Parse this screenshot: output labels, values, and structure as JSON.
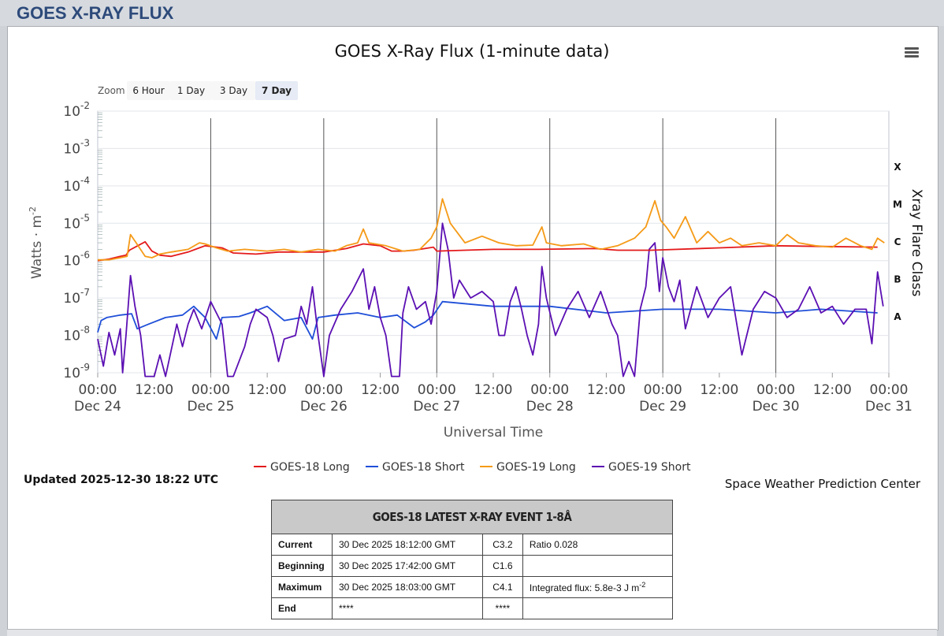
{
  "page": {
    "header": "GOES X-RAY FLUX"
  },
  "chart_data": {
    "type": "line",
    "title": "GOES X-Ray Flux (1-minute data)",
    "xlabel": "Universal Time",
    "ylabel": "Watts · m",
    "ylabel_sup": "-2",
    "y_scale": "log",
    "ylim": [
      1e-09,
      0.01
    ],
    "y_ticks": [
      {
        "base": "10",
        "exp": "-9"
      },
      {
        "base": "10",
        "exp": "-8"
      },
      {
        "base": "10",
        "exp": "-7"
      },
      {
        "base": "10",
        "exp": "-6"
      },
      {
        "base": "10",
        "exp": "-5"
      },
      {
        "base": "10",
        "exp": "-4"
      },
      {
        "base": "10",
        "exp": "-3"
      },
      {
        "base": "10",
        "exp": "-2"
      }
    ],
    "xlim": [
      "2025-12-24 00:00",
      "2025-12-31 00:00"
    ],
    "x_ticks": [
      {
        "time": "00:00",
        "date": "Dec 24"
      },
      {
        "time": "12:00",
        "date": ""
      },
      {
        "time": "00:00",
        "date": "Dec 25"
      },
      {
        "time": "12:00",
        "date": ""
      },
      {
        "time": "00:00",
        "date": "Dec 26"
      },
      {
        "time": "12:00",
        "date": ""
      },
      {
        "time": "00:00",
        "date": "Dec 27"
      },
      {
        "time": "12:00",
        "date": ""
      },
      {
        "time": "00:00",
        "date": "Dec 28"
      },
      {
        "time": "12:00",
        "date": ""
      },
      {
        "time": "00:00",
        "date": "Dec 29"
      },
      {
        "time": "12:00",
        "date": ""
      },
      {
        "time": "00:00",
        "date": "Dec 30"
      },
      {
        "time": "12:00",
        "date": ""
      },
      {
        "time": "00:00",
        "date": "Dec 31"
      }
    ],
    "right_axis_title": "Xray Flare Class",
    "flare_classes": [
      {
        "label": "X",
        "level": 0.0001
      },
      {
        "label": "M",
        "level": 1e-05
      },
      {
        "label": "C",
        "level": 1e-06
      },
      {
        "label": "B",
        "level": 1e-07
      },
      {
        "label": "A",
        "level": 1e-08
      }
    ],
    "grid": true,
    "legend_position": "bottom",
    "zoom": {
      "label": "Zoom",
      "buttons": [
        "6 Hour",
        "1 Day",
        "3 Day",
        "7 Day"
      ],
      "active": "7 Day"
    },
    "series": [
      {
        "name": "GOES-18 Long",
        "color": "#e41a1c",
        "points": [
          [
            0,
            1e-06
          ],
          [
            0.1,
            1.1e-06
          ],
          [
            0.2,
            1.3e-06
          ],
          [
            0.25,
            1.4e-06
          ],
          [
            0.28,
            1.9e-06
          ],
          [
            0.42,
            3.2e-06
          ],
          [
            0.48,
            1.8e-06
          ],
          [
            0.55,
            1.4e-06
          ],
          [
            0.65,
            1.3e-06
          ],
          [
            0.8,
            1.7e-06
          ],
          [
            0.95,
            2.5e-06
          ],
          [
            1.1,
            2.2e-06
          ],
          [
            1.2,
            1.6e-06
          ],
          [
            1.4,
            1.5e-06
          ],
          [
            1.6,
            1.7e-06
          ],
          [
            1.8,
            1.7e-06
          ],
          [
            1.95,
            1.7e-06
          ],
          [
            2.0,
            1.7e-06
          ],
          [
            2.2,
            2.1e-06
          ],
          [
            2.35,
            2.8e-06
          ],
          [
            2.5,
            2.5e-06
          ],
          [
            2.6,
            1.8e-06
          ],
          [
            2.7,
            1.8e-06
          ],
          [
            2.8,
            1.9e-06
          ],
          [
            2.97,
            2.3e-06
          ],
          [
            3.0,
            1.8e-06
          ],
          [
            3.5,
            2e-06
          ],
          [
            3.9,
            2e-06
          ],
          [
            4.4,
            2.1e-06
          ],
          [
            4.6,
            1.9e-06
          ],
          [
            4.75,
            1.9e-06
          ],
          [
            4.9,
            1.9e-06
          ],
          [
            5.5,
            2.2e-06
          ],
          [
            6.0,
            2.5e-06
          ],
          [
            6.4,
            2.4e-06
          ],
          [
            6.9,
            2.3e-06
          ]
        ]
      },
      {
        "name": "GOES-18 Short",
        "color": "#1f4fd8",
        "points": [
          [
            0,
            1.2e-08
          ],
          [
            0.03,
            2.5e-08
          ],
          [
            0.08,
            3e-08
          ],
          [
            0.2,
            3.5e-08
          ],
          [
            0.3,
            3.8e-08
          ],
          [
            0.35,
            1.5e-08
          ],
          [
            0.45,
            2e-08
          ],
          [
            0.6,
            3e-08
          ],
          [
            0.75,
            3.5e-08
          ],
          [
            0.85,
            6e-08
          ],
          [
            0.95,
            3e-08
          ],
          [
            1.05,
            8e-09
          ],
          [
            1.1,
            3e-08
          ],
          [
            1.25,
            3.2e-08
          ],
          [
            1.35,
            4e-08
          ],
          [
            1.5,
            6e-08
          ],
          [
            1.65,
            2.5e-08
          ],
          [
            1.8,
            3e-08
          ],
          [
            1.9,
            8e-09
          ],
          [
            1.95,
            3e-08
          ],
          [
            2.1,
            3.5e-08
          ],
          [
            2.3,
            4e-08
          ],
          [
            2.5,
            3e-08
          ],
          [
            2.65,
            3.5e-08
          ],
          [
            2.8,
            1.6e-08
          ],
          [
            2.9,
            2.3e-08
          ],
          [
            2.97,
            3.5e-08
          ],
          [
            3.05,
            8e-08
          ],
          [
            3.5,
            6e-08
          ],
          [
            4,
            6e-08
          ],
          [
            4.5,
            4e-08
          ],
          [
            5,
            5e-08
          ],
          [
            5.5,
            5e-08
          ],
          [
            6,
            4e-08
          ],
          [
            6.4,
            5e-08
          ],
          [
            6.9,
            4e-08
          ]
        ]
      },
      {
        "name": "GOES-19 Long",
        "color": "#f59a17",
        "points": [
          [
            0,
            1.05e-06
          ],
          [
            0.1,
            1.05e-06
          ],
          [
            0.2,
            1.2e-06
          ],
          [
            0.26,
            1.3e-06
          ],
          [
            0.29,
            5e-06
          ],
          [
            0.34,
            3e-06
          ],
          [
            0.42,
            1.3e-06
          ],
          [
            0.48,
            1.2e-06
          ],
          [
            0.55,
            1.5e-06
          ],
          [
            0.65,
            1.7e-06
          ],
          [
            0.8,
            2e-06
          ],
          [
            0.9,
            3e-06
          ],
          [
            0.95,
            2.8e-06
          ],
          [
            1.05,
            2.2e-06
          ],
          [
            1.15,
            1.8e-06
          ],
          [
            1.3,
            2e-06
          ],
          [
            1.5,
            1.8e-06
          ],
          [
            1.65,
            2e-06
          ],
          [
            1.8,
            1.7e-06
          ],
          [
            1.95,
            2e-06
          ],
          [
            2.1,
            1.8e-06
          ],
          [
            2.2,
            2.5e-06
          ],
          [
            2.3,
            3e-06
          ],
          [
            2.35,
            7e-06
          ],
          [
            2.4,
            3e-06
          ],
          [
            2.55,
            2.5e-06
          ],
          [
            2.7,
            1.8e-06
          ],
          [
            2.85,
            2e-06
          ],
          [
            2.95,
            4e-06
          ],
          [
            3.0,
            8e-06
          ],
          [
            3.05,
            4.5e-05
          ],
          [
            3.12,
            1e-05
          ],
          [
            3.25,
            3e-06
          ],
          [
            3.4,
            4.5e-06
          ],
          [
            3.55,
            3e-06
          ],
          [
            3.7,
            2.5e-06
          ],
          [
            3.85,
            2.6e-06
          ],
          [
            3.93,
            8e-06
          ],
          [
            3.97,
            3e-06
          ],
          [
            4.1,
            2.5e-06
          ],
          [
            4.3,
            2.8e-06
          ],
          [
            4.45,
            2e-06
          ],
          [
            4.6,
            2.5e-06
          ],
          [
            4.75,
            4e-06
          ],
          [
            4.85,
            8e-06
          ],
          [
            4.93,
            4e-05
          ],
          [
            4.98,
            1.2e-05
          ],
          [
            5.03,
            8e-06
          ],
          [
            5.1,
            4e-06
          ],
          [
            5.2,
            1.5e-05
          ],
          [
            5.3,
            3e-06
          ],
          [
            5.4,
            6e-06
          ],
          [
            5.5,
            3e-06
          ],
          [
            5.6,
            4e-06
          ],
          [
            5.7,
            2.5e-06
          ],
          [
            5.85,
            3e-06
          ],
          [
            6.0,
            2.5e-06
          ],
          [
            6.1,
            5e-06
          ],
          [
            6.2,
            3e-06
          ],
          [
            6.35,
            2.5e-06
          ],
          [
            6.5,
            2.3e-06
          ],
          [
            6.62,
            4e-06
          ],
          [
            6.75,
            2.5e-06
          ],
          [
            6.85,
            2e-06
          ],
          [
            6.9,
            4e-06
          ],
          [
            6.96,
            3e-06
          ]
        ]
      },
      {
        "name": "GOES-19 Short",
        "color": "#5b0fb3",
        "points": [
          [
            0,
            8e-09
          ],
          [
            0.05,
            1.5e-09
          ],
          [
            0.1,
            1.2e-08
          ],
          [
            0.15,
            3e-09
          ],
          [
            0.2,
            1.5e-08
          ],
          [
            0.22,
            1e-09
          ],
          [
            0.25,
            1e-08
          ],
          [
            0.29,
            4e-07
          ],
          [
            0.33,
            6e-08
          ],
          [
            0.38,
            1e-08
          ],
          [
            0.42,
            8e-10
          ],
          [
            0.5,
            8e-10
          ],
          [
            0.55,
            3e-09
          ],
          [
            0.6,
            8e-10
          ],
          [
            0.7,
            2e-08
          ],
          [
            0.75,
            5e-09
          ],
          [
            0.8,
            2e-08
          ],
          [
            0.85,
            5e-08
          ],
          [
            0.92,
            1.5e-08
          ],
          [
            1.0,
            8e-08
          ],
          [
            1.05,
            4e-08
          ],
          [
            1.1,
            2e-08
          ],
          [
            1.15,
            8e-10
          ],
          [
            1.2,
            8e-10
          ],
          [
            1.3,
            5e-09
          ],
          [
            1.35,
            2e-08
          ],
          [
            1.4,
            5e-08
          ],
          [
            1.5,
            3e-08
          ],
          [
            1.55,
            1e-08
          ],
          [
            1.6,
            2e-09
          ],
          [
            1.65,
            8e-09
          ],
          [
            1.75,
            1e-08
          ],
          [
            1.8,
            6e-08
          ],
          [
            1.85,
            2e-08
          ],
          [
            1.9,
            2e-07
          ],
          [
            1.95,
            1e-08
          ],
          [
            2.0,
            8e-10
          ],
          [
            2.05,
            1e-08
          ],
          [
            2.15,
            5e-08
          ],
          [
            2.25,
            1.5e-07
          ],
          [
            2.35,
            6e-07
          ],
          [
            2.4,
            5e-08
          ],
          [
            2.45,
            2e-07
          ],
          [
            2.5,
            3e-08
          ],
          [
            2.55,
            1e-08
          ],
          [
            2.6,
            8e-10
          ],
          [
            2.67,
            8e-10
          ],
          [
            2.7,
            4e-08
          ],
          [
            2.75,
            2e-07
          ],
          [
            2.82,
            5e-08
          ],
          [
            2.9,
            8e-08
          ],
          [
            2.95,
            2e-08
          ],
          [
            3.0,
            1.5e-07
          ],
          [
            3.05,
            1e-05
          ],
          [
            3.1,
            2e-06
          ],
          [
            3.15,
            1e-07
          ],
          [
            3.2,
            3e-07
          ],
          [
            3.3,
            1e-07
          ],
          [
            3.4,
            1.5e-07
          ],
          [
            3.5,
            8e-08
          ],
          [
            3.55,
            1e-08
          ],
          [
            3.6,
            1e-08
          ],
          [
            3.65,
            8e-08
          ],
          [
            3.7,
            2e-07
          ],
          [
            3.75,
            5e-08
          ],
          [
            3.8,
            1e-08
          ],
          [
            3.85,
            3e-09
          ],
          [
            3.9,
            2e-08
          ],
          [
            3.93,
            7e-07
          ],
          [
            3.97,
            1e-07
          ],
          [
            4.05,
            1e-08
          ],
          [
            4.15,
            5e-08
          ],
          [
            4.25,
            1.5e-07
          ],
          [
            4.35,
            3e-08
          ],
          [
            4.45,
            1.5e-07
          ],
          [
            4.55,
            2e-08
          ],
          [
            4.6,
            1e-08
          ],
          [
            4.65,
            8e-10
          ],
          [
            4.7,
            2e-09
          ],
          [
            4.75,
            8e-10
          ],
          [
            4.8,
            5e-08
          ],
          [
            4.85,
            2e-07
          ],
          [
            4.88,
            2e-06
          ],
          [
            4.93,
            3e-06
          ],
          [
            4.97,
            1.5e-07
          ],
          [
            5.0,
            1.2e-06
          ],
          [
            5.05,
            2e-07
          ],
          [
            5.1,
            8e-08
          ],
          [
            5.15,
            3e-07
          ],
          [
            5.2,
            1.5e-08
          ],
          [
            5.3,
            2e-07
          ],
          [
            5.4,
            3e-08
          ],
          [
            5.5,
            1e-07
          ],
          [
            5.6,
            2e-07
          ],
          [
            5.7,
            3e-09
          ],
          [
            5.8,
            5e-08
          ],
          [
            5.9,
            1.5e-07
          ],
          [
            6.0,
            1e-07
          ],
          [
            6.1,
            3e-08
          ],
          [
            6.2,
            5e-08
          ],
          [
            6.3,
            2e-07
          ],
          [
            6.4,
            4e-08
          ],
          [
            6.5,
            6e-08
          ],
          [
            6.6,
            2e-08
          ],
          [
            6.7,
            5e-08
          ],
          [
            6.8,
            5e-08
          ],
          [
            6.85,
            6e-09
          ],
          [
            6.9,
            5e-07
          ],
          [
            6.95,
            6e-08
          ]
        ]
      }
    ]
  },
  "updated": "Updated 2025-12-30 18:22 UTC",
  "credit": "Space Weather Prediction Center",
  "event_table": {
    "title": "GOES-18 LATEST X-RAY EVENT 1-8Å",
    "rows": [
      {
        "label": "Current",
        "time": "30 Dec 2025 18:12:00 GMT",
        "class": "C3.2",
        "note": "Ratio 0.028"
      },
      {
        "label": "Beginning",
        "time": "30 Dec 2025 17:42:00 GMT",
        "class": "C1.6",
        "note": ""
      },
      {
        "label": "Maximum",
        "time": "30 Dec 2025 18:03:00 GMT",
        "class": "C4.1",
        "note": "Integrated flux: 5.8e-3 J m",
        "note_sup": "-2"
      },
      {
        "label": "End",
        "time": "****",
        "class": "****",
        "note": ""
      }
    ]
  },
  "menu_icon": "hamburger-menu-icon"
}
